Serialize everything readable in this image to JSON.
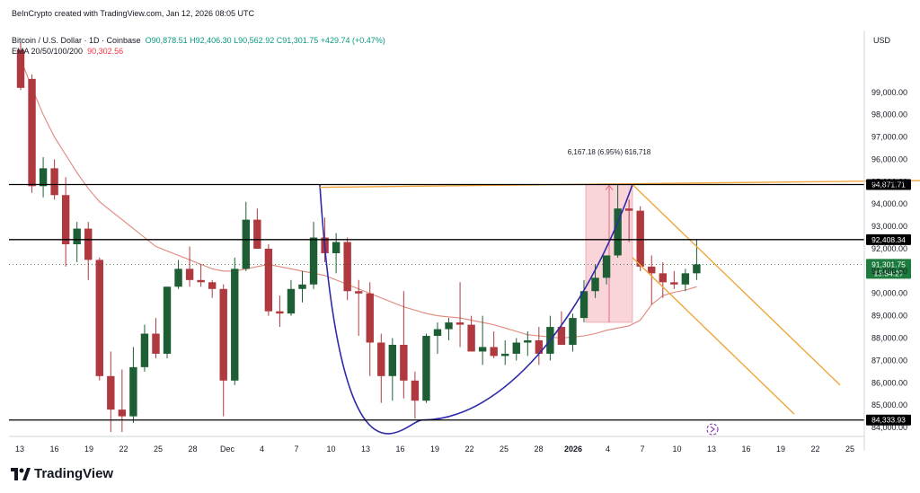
{
  "header": {
    "credit": "BeInCrypto created with TradingView.com, Jan 12, 2026 08:05 UTC",
    "symbol": "Bitcoin / U.S. Dollar · 1D · Coinbase",
    "ohlc": "O90,878.51 H92,406.30 L90,562.92 C91,301.75 +429.74 (+0.47%)",
    "ema_label": "EMA 20/50/100/200",
    "ema_value": "90,302.56"
  },
  "currency": "USD",
  "logo_text": "TradingView",
  "chart_data": {
    "type": "candlestick",
    "x_tick_labels": [
      "13",
      "16",
      "19",
      "22",
      "25",
      "28",
      "Dec",
      "4",
      "7",
      "10",
      "13",
      "16",
      "19",
      "22",
      "25",
      "28",
      "2026",
      "4",
      "7",
      "10",
      "13",
      "16",
      "19",
      "22",
      "25"
    ],
    "y_tick_labels": [
      "84,000.00",
      "85,000.00",
      "86,000.00",
      "87,000.00",
      "88,000.00",
      "89,000.00",
      "90,000.00",
      "91,000.00",
      "92,000.00",
      "93,000.00",
      "94,000.00",
      "95,000.00",
      "96,000.00",
      "97,000.00",
      "98,000.00",
      "99,000.00"
    ],
    "ylim": [
      83600,
      100800
    ],
    "colors": {
      "up": "#1e5e34",
      "down": "#b0383f",
      "ema": "#e0867a",
      "level": "#000000",
      "trend": "#f0a53a",
      "cup": "#2e2aa8"
    },
    "candles": [
      {
        "o": 100900,
        "h": 101200,
        "l": 99100,
        "c": 99200
      },
      {
        "o": 99600,
        "h": 99800,
        "l": 94500,
        "c": 94800
      },
      {
        "o": 94800,
        "h": 96100,
        "l": 94300,
        "c": 95600
      },
      {
        "o": 95600,
        "h": 96000,
        "l": 94200,
        "c": 94400
      },
      {
        "o": 94400,
        "h": 95200,
        "l": 91200,
        "c": 92200
      },
      {
        "o": 92200,
        "h": 93200,
        "l": 91400,
        "c": 92900
      },
      {
        "o": 92900,
        "h": 93200,
        "l": 90600,
        "c": 91500
      },
      {
        "o": 91500,
        "h": 91600,
        "l": 86100,
        "c": 86300
      },
      {
        "o": 86300,
        "h": 87400,
        "l": 83800,
        "c": 84800
      },
      {
        "o": 84800,
        "h": 86600,
        "l": 83800,
        "c": 84500
      },
      {
        "o": 84500,
        "h": 87600,
        "l": 84200,
        "c": 86700
      },
      {
        "o": 86700,
        "h": 88600,
        "l": 86500,
        "c": 88200
      },
      {
        "o": 88200,
        "h": 88900,
        "l": 87100,
        "c": 87300
      },
      {
        "o": 87300,
        "h": 90300,
        "l": 87100,
        "c": 90300
      },
      {
        "o": 90300,
        "h": 91500,
        "l": 90200,
        "c": 91100
      },
      {
        "o": 91100,
        "h": 92100,
        "l": 90300,
        "c": 90600
      },
      {
        "o": 90600,
        "h": 91300,
        "l": 90300,
        "c": 90500
      },
      {
        "o": 90500,
        "h": 90600,
        "l": 89800,
        "c": 90200
      },
      {
        "o": 90200,
        "h": 90400,
        "l": 84500,
        "c": 86100
      },
      {
        "o": 86100,
        "h": 91600,
        "l": 85900,
        "c": 91100
      },
      {
        "o": 91100,
        "h": 94100,
        "l": 91000,
        "c": 93300
      },
      {
        "o": 93300,
        "h": 93800,
        "l": 92000,
        "c": 92000
      },
      {
        "o": 92000,
        "h": 92200,
        "l": 89000,
        "c": 89200
      },
      {
        "o": 89200,
        "h": 89900,
        "l": 88500,
        "c": 89100
      },
      {
        "o": 89100,
        "h": 90600,
        "l": 89000,
        "c": 90200
      },
      {
        "o": 90200,
        "h": 91000,
        "l": 89600,
        "c": 90400
      },
      {
        "o": 90400,
        "h": 93200,
        "l": 90200,
        "c": 92500
      },
      {
        "o": 92500,
        "h": 93400,
        "l": 91400,
        "c": 91800
      },
      {
        "o": 91800,
        "h": 92700,
        "l": 90900,
        "c": 92300
      },
      {
        "o": 92300,
        "h": 92500,
        "l": 89700,
        "c": 90100
      },
      {
        "o": 90100,
        "h": 90600,
        "l": 88100,
        "c": 90000
      },
      {
        "o": 90000,
        "h": 90500,
        "l": 86300,
        "c": 87800
      },
      {
        "o": 87800,
        "h": 88200,
        "l": 85100,
        "c": 86300
      },
      {
        "o": 86300,
        "h": 88000,
        "l": 85200,
        "c": 87700
      },
      {
        "o": 87700,
        "h": 90100,
        "l": 85300,
        "c": 86100
      },
      {
        "o": 86100,
        "h": 86500,
        "l": 84400,
        "c": 85200
      },
      {
        "o": 85200,
        "h": 88200,
        "l": 85100,
        "c": 88100
      },
      {
        "o": 88100,
        "h": 88700,
        "l": 87300,
        "c": 88400
      },
      {
        "o": 88400,
        "h": 88900,
        "l": 87900,
        "c": 88700
      },
      {
        "o": 88700,
        "h": 90500,
        "l": 87600,
        "c": 88600
      },
      {
        "o": 88600,
        "h": 89000,
        "l": 87400,
        "c": 87400
      },
      {
        "o": 87400,
        "h": 89000,
        "l": 86800,
        "c": 87600
      },
      {
        "o": 87600,
        "h": 88300,
        "l": 87100,
        "c": 87200
      },
      {
        "o": 87200,
        "h": 87900,
        "l": 86800,
        "c": 87300
      },
      {
        "o": 87300,
        "h": 88000,
        "l": 87000,
        "c": 87800
      },
      {
        "o": 87800,
        "h": 88300,
        "l": 87200,
        "c": 87900
      },
      {
        "o": 87900,
        "h": 88500,
        "l": 86800,
        "c": 87300
      },
      {
        "o": 87300,
        "h": 89000,
        "l": 87000,
        "c": 88500
      },
      {
        "o": 88500,
        "h": 89200,
        "l": 87800,
        "c": 87700
      },
      {
        "o": 87700,
        "h": 89100,
        "l": 87400,
        "c": 88900
      },
      {
        "o": 88900,
        "h": 90600,
        "l": 88700,
        "c": 90100
      },
      {
        "o": 90100,
        "h": 91300,
        "l": 89800,
        "c": 90700
      },
      {
        "o": 90700,
        "h": 91700,
        "l": 90400,
        "c": 91700
      },
      {
        "o": 91700,
        "h": 94900,
        "l": 91600,
        "c": 93800
      },
      {
        "o": 93800,
        "h": 94200,
        "l": 92300,
        "c": 93700
      },
      {
        "o": 93700,
        "h": 93900,
        "l": 91000,
        "c": 91200
      },
      {
        "o": 91200,
        "h": 91700,
        "l": 89500,
        "c": 90900
      },
      {
        "o": 90900,
        "h": 91400,
        "l": 89800,
        "c": 90500
      },
      {
        "o": 90500,
        "h": 91000,
        "l": 90200,
        "c": 90400
      },
      {
        "o": 90400,
        "h": 91100,
        "l": 90100,
        "c": 90900
      },
      {
        "o": 90900,
        "h": 92400,
        "l": 90600,
        "c": 91300
      }
    ],
    "ema": [
      100500,
      99200,
      98000,
      97000,
      96200,
      95400,
      94700,
      94100,
      93700,
      93300,
      92900,
      92500,
      92100,
      91900,
      91700,
      91500,
      91300,
      91100,
      91000,
      91000,
      91100,
      91200,
      91300,
      91200,
      91100,
      91000,
      90900,
      90800,
      90600,
      90400,
      90200,
      90000,
      89800,
      89600,
      89400,
      89250,
      89100,
      89000,
      88950,
      88900,
      88800,
      88700,
      88600,
      88450,
      88300,
      88150,
      88100,
      88050,
      88000,
      88050,
      88100,
      88200,
      88350,
      88450,
      88550,
      88800,
      89500,
      89900,
      90050,
      90150,
      90300
    ],
    "levels": [
      {
        "y": 94871.71,
        "label": "94,871.71"
      },
      {
        "y": 92408.34,
        "label": "92,408.34"
      },
      {
        "y": 84333.93,
        "label": "84,333.93"
      }
    ],
    "current_price": {
      "y": 91301.75,
      "label": "91,301.75",
      "countdown": "15:54:27"
    },
    "measure_label": "6,167.18 (6.95%) 616,718"
  }
}
